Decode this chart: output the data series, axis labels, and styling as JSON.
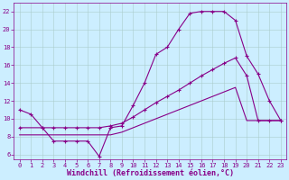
{
  "xlabel": "Windchill (Refroidissement éolien,°C)",
  "background_color": "#cceeff",
  "line_color": "#880088",
  "xlim": [
    -0.5,
    23.5
  ],
  "ylim": [
    5.5,
    23.0
  ],
  "yticks": [
    6,
    8,
    10,
    12,
    14,
    16,
    18,
    20,
    22
  ],
  "xticks": [
    0,
    1,
    2,
    3,
    4,
    5,
    6,
    7,
    8,
    9,
    10,
    11,
    12,
    13,
    14,
    15,
    16,
    17,
    18,
    19,
    20,
    21,
    22,
    23
  ],
  "line1_x": [
    0,
    1,
    2,
    3,
    4,
    5,
    6,
    7,
    8,
    9,
    10,
    11,
    12,
    13,
    14,
    15,
    16,
    17,
    18,
    19,
    20,
    21,
    22,
    23
  ],
  "line1_y": [
    11,
    10.5,
    9,
    7.5,
    7.5,
    7.5,
    7.5,
    5.8,
    9.0,
    9.2,
    11.5,
    14.0,
    17.2,
    18.0,
    20.0,
    21.8,
    22.0,
    22.0,
    22.0,
    21.0,
    17.0,
    15.0,
    12.0,
    9.8
  ],
  "line2_x": [
    0,
    2,
    3,
    4,
    5,
    6,
    7,
    8,
    9,
    10,
    11,
    12,
    13,
    14,
    15,
    16,
    17,
    18,
    19,
    20,
    21,
    22,
    23
  ],
  "line2_y": [
    9.0,
    9.0,
    9.0,
    9.0,
    9.0,
    9.0,
    9.0,
    9.2,
    9.5,
    10.2,
    11.0,
    11.8,
    12.5,
    13.2,
    14.0,
    14.8,
    15.5,
    16.2,
    16.8,
    14.8,
    9.8,
    9.8,
    9.8
  ],
  "line3_x": [
    0,
    2,
    3,
    4,
    5,
    6,
    7,
    8,
    9,
    10,
    11,
    12,
    13,
    14,
    15,
    16,
    17,
    18,
    19,
    20,
    21,
    22,
    23
  ],
  "line3_y": [
    8.2,
    8.2,
    8.2,
    8.2,
    8.2,
    8.2,
    8.2,
    8.2,
    8.5,
    9.0,
    9.5,
    10.0,
    10.5,
    11.0,
    11.5,
    12.0,
    12.5,
    13.0,
    13.5,
    9.8,
    9.8,
    9.8,
    9.8
  ],
  "grid_color": "#aacccc",
  "font_color": "#880088",
  "xlabel_fontsize": 6,
  "tick_fontsize": 5
}
